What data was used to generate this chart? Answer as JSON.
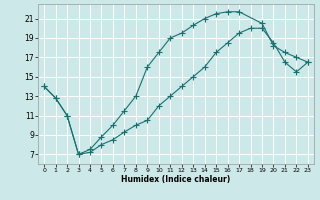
{
  "xlabel": "Humidex (Indice chaleur)",
  "ylabel": "",
  "bg_color": "#cde8e8",
  "grid_color": "#ffffff",
  "line_color": "#1a7070",
  "xlim": [
    -0.5,
    23.5
  ],
  "ylim": [
    6.0,
    22.5
  ],
  "xticks": [
    0,
    1,
    2,
    3,
    4,
    5,
    6,
    7,
    8,
    9,
    10,
    11,
    12,
    13,
    14,
    15,
    16,
    17,
    18,
    19,
    20,
    21,
    22,
    23
  ],
  "yticks": [
    7,
    9,
    11,
    13,
    15,
    17,
    19,
    21
  ],
  "curve_upper_x": [
    0,
    1,
    2,
    3,
    4,
    5,
    6,
    7,
    8,
    9,
    10,
    11,
    12,
    13,
    14,
    15,
    16,
    17,
    19,
    20,
    21,
    22,
    23
  ],
  "curve_upper_y": [
    14,
    12.8,
    11,
    7,
    7.5,
    8.8,
    10,
    11.5,
    13,
    16,
    17.5,
    19,
    19.5,
    20.3,
    21,
    21.5,
    21.7,
    21.7,
    20.5,
    18.2,
    17.5,
    17,
    16.5
  ],
  "curve_lower_x": [
    0,
    1,
    2,
    3,
    4,
    5,
    6,
    7,
    8,
    9,
    10,
    11,
    12,
    13,
    14,
    15,
    16,
    17,
    18,
    19,
    20,
    21,
    22,
    23
  ],
  "curve_lower_y": [
    14,
    12.8,
    11,
    7,
    7.2,
    8,
    8.5,
    9.3,
    10,
    10.5,
    12,
    13,
    14,
    15,
    16,
    17.5,
    18.5,
    19.5,
    20,
    20,
    18.5,
    16.5,
    15.5,
    16.5
  ]
}
